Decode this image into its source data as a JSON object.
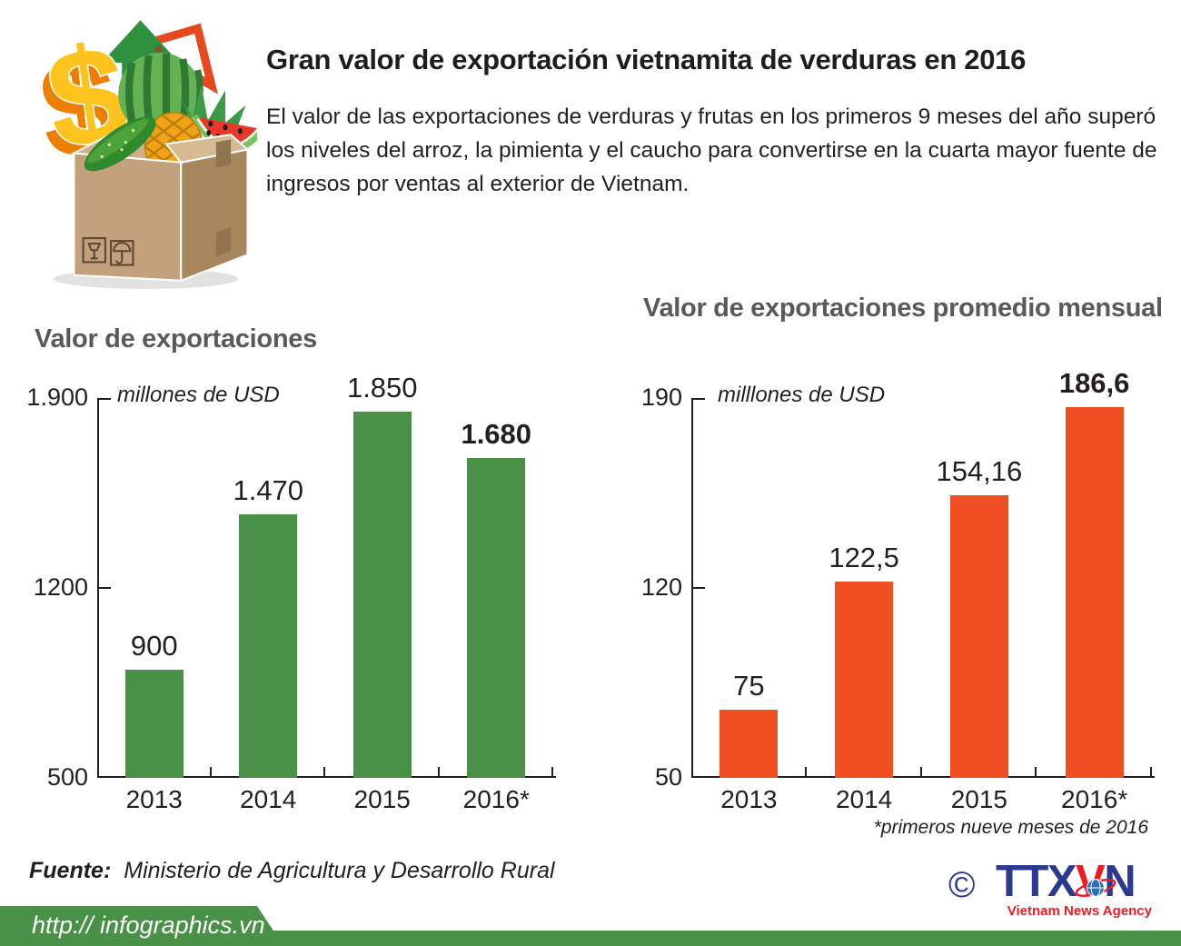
{
  "header": {
    "title": "Gran valor de exportación vietnamita de verduras en 2016",
    "intro": "El valor de las exportaciones de verduras y frutas en los primeros 9 meses del año superó los niveles del arroz, la pimienta y el caucho para convertirse en la cuarta mayor fuente de ingresos por ventas al exterior de Vietnam."
  },
  "colors": {
    "green_bar": "#4a9148",
    "orange_bar": "#f04e23",
    "title_gray": "#58595b",
    "ink": "#231f20",
    "logo_blue": "#2b3990",
    "logo_red": "#ed1c24",
    "banner_green": "#4a9148"
  },
  "chart_data": [
    {
      "type": "bar",
      "title": "Valor de exportaciones",
      "unit_label": "millones de USD",
      "categories": [
        "2013",
        "2014",
        "2015",
        "2016*"
      ],
      "values": [
        900,
        1470,
        1850,
        1680
      ],
      "value_labels": [
        "900",
        "1.470",
        "1.850",
        "1.680"
      ],
      "bold_indices": [
        3
      ],
      "ylim": [
        500,
        1900
      ],
      "yticks": [
        {
          "value": 1900,
          "label": "1.900"
        },
        {
          "value": 1200,
          "label": "1200"
        },
        {
          "value": 500,
          "label": "500"
        }
      ],
      "bar_color": "#4a9148",
      "grid": false,
      "legend": false
    },
    {
      "type": "bar",
      "title": "Valor de exportaciones promedio mensual",
      "unit_label": "milllones de USD",
      "categories": [
        "2013",
        "2014",
        "2015",
        "2016*"
      ],
      "values": [
        75,
        122.5,
        154.16,
        186.6
      ],
      "value_labels": [
        "75",
        "122,5",
        "154,16",
        "186,6"
      ],
      "bold_indices": [
        3
      ],
      "ylim": [
        50,
        190
      ],
      "yticks": [
        {
          "value": 190,
          "label": "190"
        },
        {
          "value": 120,
          "label": "120"
        },
        {
          "value": 50,
          "label": "50"
        }
      ],
      "bar_color": "#f04e23",
      "grid": false,
      "legend": false
    }
  ],
  "footnote": "*primeros nueve meses de 2016",
  "source": {
    "label": "Fuente:",
    "text": "Ministerio de Agricultura y Desarrollo Rural"
  },
  "logo": {
    "copyright": "©",
    "part1": "TTX",
    "part2": "V",
    "part3": "N",
    "subtitle": "Vietnam News Agency"
  },
  "footer": {
    "url": "http:// infographics.vn"
  }
}
